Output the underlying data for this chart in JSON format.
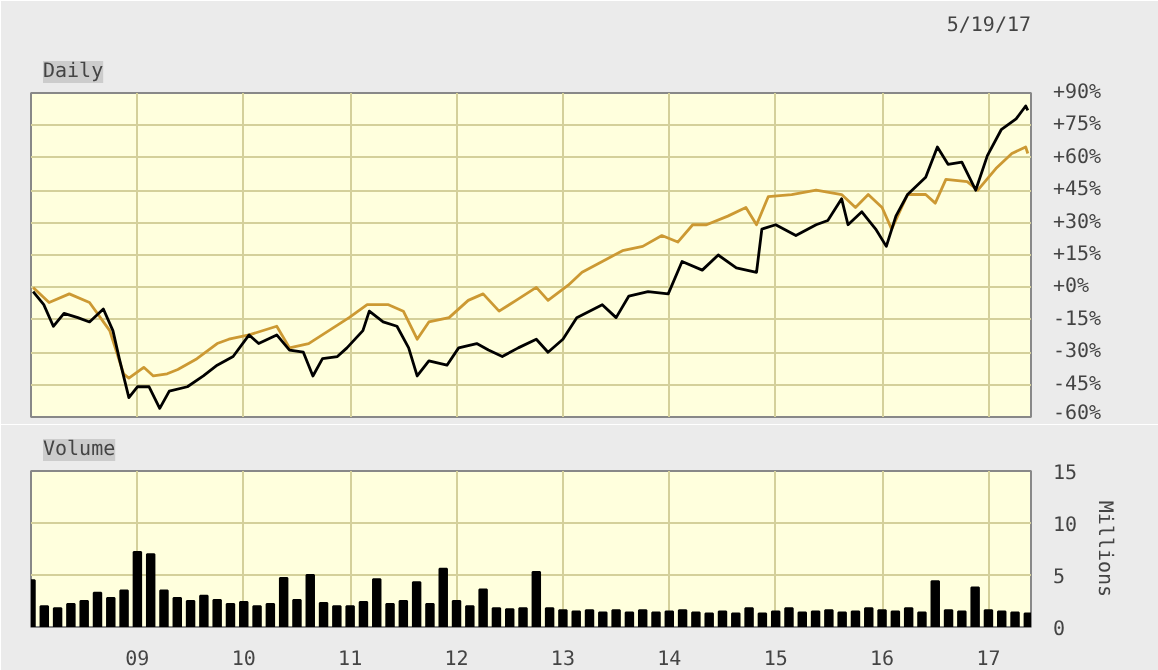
{
  "chart_data": [
    {
      "type": "line",
      "title": "Daily",
      "annotations": [
        "5/19/17"
      ],
      "grid": true,
      "tick_labels": "y",
      "marker": "none",
      "line_style": "solid",
      "xlim": [
        2008.0,
        2017.4
      ],
      "xticks": [
        {
          "value": 2009,
          "label": null
        },
        {
          "value": 2010,
          "label": null
        },
        {
          "value": 2011,
          "label": null
        },
        {
          "value": 2012,
          "label": null
        },
        {
          "value": 2013,
          "label": null
        },
        {
          "value": 2014,
          "label": null
        },
        {
          "value": 2015,
          "label": null
        },
        {
          "value": 2016,
          "label": null
        },
        {
          "value": 2017,
          "label": null
        }
      ],
      "ylim": [
        -60,
        90
      ],
      "yticks": [
        {
          "value": -60,
          "label": "-60%"
        },
        {
          "value": -45,
          "label": "-45%"
        },
        {
          "value": -30,
          "label": "-30%"
        },
        {
          "value": -15,
          "label": "-15%"
        },
        {
          "value": 0,
          "label": "+0%"
        },
        {
          "value": 15,
          "label": "+15%"
        },
        {
          "value": 30,
          "label": "+30%"
        },
        {
          "value": 45,
          "label": "+45%"
        },
        {
          "value": 60,
          "label": "+60%"
        },
        {
          "value": 75,
          "label": "+75%"
        },
        {
          "value": 90,
          "label": "+90%"
        }
      ],
      "series": [
        {
          "color": "#cc9933",
          "x": [
            2008.02,
            2008.17,
            2008.36,
            2008.55,
            2008.74,
            2008.87,
            2008.92,
            2009.06,
            2009.15,
            2009.28,
            2009.38,
            2009.56,
            2009.75,
            2009.86,
            2010.05,
            2010.31,
            2010.43,
            2010.61,
            2010.8,
            2010.99,
            2011.16,
            2011.36,
            2011.5,
            2011.63,
            2011.74,
            2011.93,
            2012.11,
            2012.25,
            2012.4,
            2012.56,
            2012.75,
            2012.86,
            2013.05,
            2013.18,
            2013.37,
            2013.56,
            2013.75,
            2013.93,
            2014.08,
            2014.22,
            2014.35,
            2014.55,
            2014.72,
            2014.82,
            2014.93,
            2015.15,
            2015.38,
            2015.62,
            2015.75,
            2015.87,
            2016.0,
            2016.09,
            2016.24,
            2016.41,
            2016.5,
            2016.6,
            2016.8,
            2016.9,
            2017.07,
            2017.22,
            2017.35,
            2017.37
          ],
          "values": [
            0,
            -7,
            -3,
            -7,
            -20,
            -40,
            -42,
            -37,
            -41,
            -40,
            -38,
            -33,
            -26,
            -24,
            -22,
            -18,
            -28,
            -26,
            -20,
            -14,
            -8,
            -8,
            -11,
            -24,
            -16,
            -14,
            -6,
            -3,
            -11,
            -6,
            0,
            -6,
            1,
            7,
            12,
            17,
            19,
            24,
            21,
            29,
            29,
            33,
            37,
            29,
            42,
            43,
            45,
            43,
            37,
            43,
            37,
            27,
            43,
            43,
            39,
            50,
            49,
            45,
            55,
            62,
            65,
            62
          ]
        },
        {
          "color": "#000000",
          "x": [
            2008.02,
            2008.12,
            2008.21,
            2008.31,
            2008.44,
            2008.55,
            2008.68,
            2008.77,
            2008.83,
            2008.92,
            2009.0,
            2009.11,
            2009.21,
            2009.3,
            2009.47,
            2009.62,
            2009.75,
            2009.9,
            2010.05,
            2010.14,
            2010.31,
            2010.43,
            2010.56,
            2010.65,
            2010.74,
            2010.88,
            2010.97,
            2011.12,
            2011.18,
            2011.31,
            2011.44,
            2011.55,
            2011.63,
            2011.74,
            2011.91,
            2012.02,
            2012.19,
            2012.3,
            2012.43,
            2012.58,
            2012.75,
            2012.86,
            2013.0,
            2013.13,
            2013.37,
            2013.5,
            2013.62,
            2013.8,
            2013.99,
            2014.12,
            2014.31,
            2014.46,
            2014.63,
            2014.82,
            2014.87,
            2015.0,
            2015.19,
            2015.38,
            2015.49,
            2015.62,
            2015.68,
            2015.81,
            2015.94,
            2016.04,
            2016.13,
            2016.24,
            2016.41,
            2016.52,
            2016.62,
            2016.75,
            2016.88,
            2016.99,
            2017.12,
            2017.26,
            2017.35,
            2017.37
          ],
          "values": [
            -2,
            -8,
            -18,
            -12,
            -14,
            -16,
            -10,
            -20,
            -33,
            -51,
            -46,
            -46,
            -56,
            -48,
            -46,
            -41,
            -36,
            -32,
            -22,
            -26,
            -22,
            -29,
            -30,
            -41,
            -33,
            -32,
            -28,
            -20,
            -11,
            -16,
            -18,
            -28,
            -41,
            -34,
            -36,
            -28,
            -26,
            -29,
            -32,
            -28,
            -24,
            -30,
            -24,
            -14,
            -8,
            -14,
            -4,
            -2,
            -3,
            12,
            8,
            15,
            9,
            7,
            27,
            29,
            24,
            29,
            31,
            41,
            29,
            35,
            27,
            19,
            33,
            43,
            51,
            65,
            57,
            58,
            45,
            61,
            73,
            78,
            84,
            82
          ]
        }
      ]
    },
    {
      "type": "bar",
      "title": "Volume",
      "ylabel": "Millions",
      "grid": true,
      "xlim": [
        2008.0,
        2017.4
      ],
      "xticks": [
        {
          "value": 2009,
          "label": "09"
        },
        {
          "value": 2010,
          "label": "10"
        },
        {
          "value": 2011,
          "label": "11"
        },
        {
          "value": 2012,
          "label": "12"
        },
        {
          "value": 2013,
          "label": "13"
        },
        {
          "value": 2014,
          "label": "14"
        },
        {
          "value": 2015,
          "label": "15"
        },
        {
          "value": 2016,
          "label": "16"
        },
        {
          "value": 2017,
          "label": "17"
        }
      ],
      "ylim": [
        0,
        15
      ],
      "yticks": [
        0,
        5,
        10,
        15
      ],
      "series": [
        {
          "color": "#000000",
          "x": [
            2008.0,
            2008.125,
            2008.25,
            2008.375,
            2008.5,
            2008.625,
            2008.75,
            2008.875,
            2009.0,
            2009.125,
            2009.25,
            2009.375,
            2009.5,
            2009.625,
            2009.75,
            2009.875,
            2010.0,
            2010.125,
            2010.25,
            2010.375,
            2010.5,
            2010.625,
            2010.75,
            2010.875,
            2011.0,
            2011.125,
            2011.25,
            2011.375,
            2011.5,
            2011.625,
            2011.75,
            2011.875,
            2012.0,
            2012.125,
            2012.25,
            2012.375,
            2012.5,
            2012.625,
            2012.75,
            2012.875,
            2013.0,
            2013.125,
            2013.25,
            2013.375,
            2013.5,
            2013.625,
            2013.75,
            2013.875,
            2014.0,
            2014.125,
            2014.25,
            2014.375,
            2014.5,
            2014.625,
            2014.75,
            2014.875,
            2015.0,
            2015.125,
            2015.25,
            2015.375,
            2015.5,
            2015.625,
            2015.75,
            2015.875,
            2016.0,
            2016.125,
            2016.25,
            2016.375,
            2016.5,
            2016.625,
            2016.75,
            2016.875,
            2017.0,
            2017.125,
            2017.25,
            2017.375
          ],
          "values": [
            4.5,
            2.0,
            1.8,
            2.2,
            2.5,
            3.3,
            2.8,
            3.5,
            7.2,
            7.0,
            3.5,
            2.8,
            2.5,
            3.0,
            2.6,
            2.2,
            2.4,
            2.0,
            2.2,
            4.7,
            2.6,
            5.0,
            2.3,
            2.0,
            2.0,
            2.4,
            4.6,
            2.2,
            2.5,
            4.3,
            2.2,
            5.6,
            2.5,
            2.0,
            3.6,
            1.8,
            1.7,
            1.8,
            5.3,
            1.8,
            1.6,
            1.5,
            1.6,
            1.4,
            1.6,
            1.4,
            1.6,
            1.4,
            1.5,
            1.6,
            1.4,
            1.3,
            1.5,
            1.3,
            1.8,
            1.3,
            1.5,
            1.8,
            1.4,
            1.5,
            1.6,
            1.4,
            1.5,
            1.8,
            1.6,
            1.5,
            1.8,
            1.4,
            4.4,
            1.6,
            1.5,
            3.8,
            1.6,
            1.5,
            1.4,
            1.3
          ]
        }
      ]
    }
  ]
}
